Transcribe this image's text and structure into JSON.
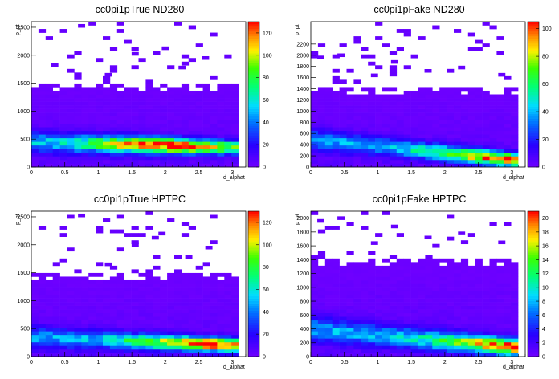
{
  "chart_data": [
    {
      "type": "heatmap",
      "title": "cc0pi1pTrue ND280",
      "xlabel": "d_alphat",
      "ylabel": "p_pt",
      "xlim": [
        0,
        3.2
      ],
      "ylim": [
        0,
        2600
      ],
      "x_ticks": [
        "0",
        "0.5",
        "1",
        "1.5",
        "2",
        "2.5",
        "3"
      ],
      "y_ticks": [
        "0",
        "500",
        "1000",
        "1500",
        "2000",
        "2500"
      ],
      "z_range": [
        0,
        130
      ],
      "z_ticks": [
        "0",
        "20",
        "40",
        "60",
        "80",
        "100",
        "120"
      ],
      "xbins": 30,
      "ybins": 40,
      "bulk": {
        "x_max": 3.1,
        "y_max": 1500,
        "peak_y": 450,
        "peak_y_at_xmax": 350,
        "peak_value": 128,
        "peak_x": 2.0
      },
      "outliers": [
        [
          0.75,
          2525
        ],
        [
          0.35,
          1825
        ],
        [
          1.55,
          2025
        ],
        [
          2.0,
          2125
        ],
        [
          2.6,
          1950
        ],
        [
          2.25,
          1780
        ],
        [
          1.15,
          1650
        ]
      ]
    },
    {
      "type": "heatmap",
      "title": "cc0pi1pFake ND280",
      "xlabel": "d_alphat",
      "ylabel": "p_pt",
      "xlim": [
        0,
        3.2
      ],
      "ylim": [
        0,
        2600
      ],
      "x_ticks": [
        "0",
        "0.5",
        "1",
        "1.5",
        "2",
        "2.5",
        "3"
      ],
      "y_ticks": [
        "0",
        "200",
        "400",
        "600",
        "800",
        "1000",
        "1200",
        "1400",
        "1600",
        "1800",
        "2000",
        "2200"
      ],
      "z_range": [
        0,
        105
      ],
      "z_ticks": [
        "0",
        "20",
        "40",
        "60",
        "80",
        "100"
      ],
      "xbins": 30,
      "ybins": 40,
      "bulk": {
        "x_max": 3.1,
        "y_max": 1400,
        "peak_y": 500,
        "peak_y_at_xmax": 120,
        "peak_value": 102,
        "peak_x": 3.0
      },
      "outliers": [
        [
          0.45,
          2000
        ],
        [
          0.15,
          1960
        ],
        [
          1.25,
          1880
        ],
        [
          2.85,
          1650
        ],
        [
          1.75,
          1720
        ],
        [
          2.25,
          1780
        ],
        [
          0.95,
          1640
        ]
      ]
    },
    {
      "type": "heatmap",
      "title": "cc0pi1pTrue HPTPC",
      "xlabel": "d_alphat",
      "ylabel": "p_pt",
      "xlim": [
        0,
        3.2
      ],
      "ylim": [
        0,
        2600
      ],
      "x_ticks": [
        "0",
        "0.5",
        "1",
        "1.5",
        "2",
        "2.5",
        "3"
      ],
      "y_ticks": [
        "0",
        "500",
        "1000",
        "1500",
        "2000",
        "2500"
      ],
      "z_range": [
        0,
        130
      ],
      "z_ticks": [
        "0",
        "20",
        "40",
        "60",
        "80",
        "100",
        "120"
      ],
      "xbins": 30,
      "ybins": 40,
      "bulk": {
        "x_max": 3.1,
        "y_max": 1500,
        "peak_y": 350,
        "peak_y_at_xmax": 200,
        "peak_value": 128,
        "peak_x": 2.7
      },
      "outliers": [
        [
          0.75,
          2525
        ],
        [
          1.85,
          2125
        ],
        [
          1.95,
          2200
        ],
        [
          1.55,
          2000
        ],
        [
          2.65,
          1950
        ],
        [
          2.35,
          1780
        ],
        [
          1.15,
          1650
        ]
      ]
    },
    {
      "type": "heatmap",
      "title": "cc0pi1pFake HPTPC",
      "xlabel": "d_alphat",
      "ylabel": "p_pt",
      "xlim": [
        0,
        3.2
      ],
      "ylim": [
        0,
        2100
      ],
      "x_ticks": [
        "0",
        "0.5",
        "1",
        "1.5",
        "2",
        "2.5",
        "3"
      ],
      "y_ticks": [
        "0",
        "200",
        "400",
        "600",
        "800",
        "1000",
        "1200",
        "1400",
        "1600",
        "1800",
        "2000"
      ],
      "z_range": [
        0,
        21
      ],
      "z_ticks": [
        "0",
        "2",
        "4",
        "6",
        "8",
        "10",
        "12",
        "14",
        "16",
        "18",
        "20"
      ],
      "xbins": 30,
      "ybins": 40,
      "bulk": {
        "x_max": 3.1,
        "y_max": 1400,
        "peak_y": 400,
        "peak_y_at_xmax": 130,
        "peak_value": 20.5,
        "peak_x": 3.05
      },
      "outliers": [
        [
          0.45,
          2000
        ],
        [
          0.15,
          1960
        ],
        [
          1.25,
          1880
        ],
        [
          2.85,
          1650
        ],
        [
          1.75,
          1720
        ],
        [
          2.25,
          1780
        ],
        [
          0.95,
          1640
        ]
      ]
    }
  ]
}
